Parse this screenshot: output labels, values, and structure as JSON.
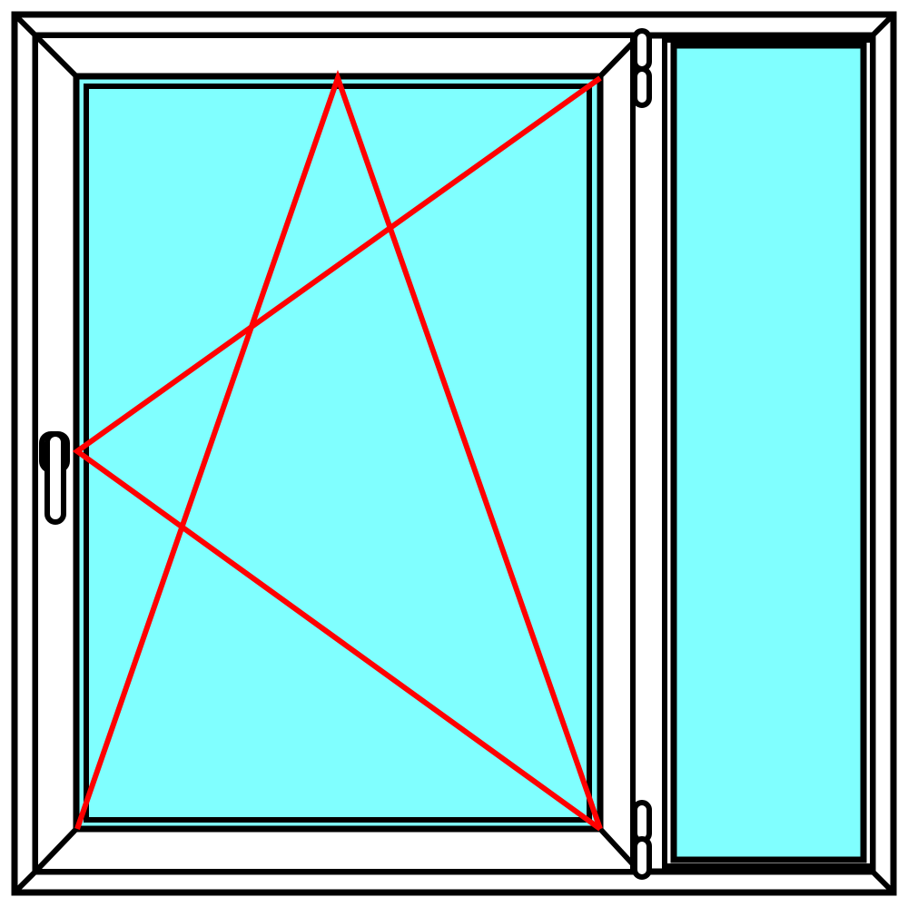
{
  "diagram": {
    "kind": "window-elevation",
    "panes": [
      {
        "id": "left-sash",
        "opening": "tilt-and-turn",
        "handle_side": "left",
        "hinge_side": "right"
      },
      {
        "id": "right-panel",
        "opening": "fixed"
      }
    ],
    "colors": {
      "frame": "#ffffff",
      "line": "#000000",
      "glass": "#80ffff",
      "opening_symbol": "#ff0000"
    }
  }
}
